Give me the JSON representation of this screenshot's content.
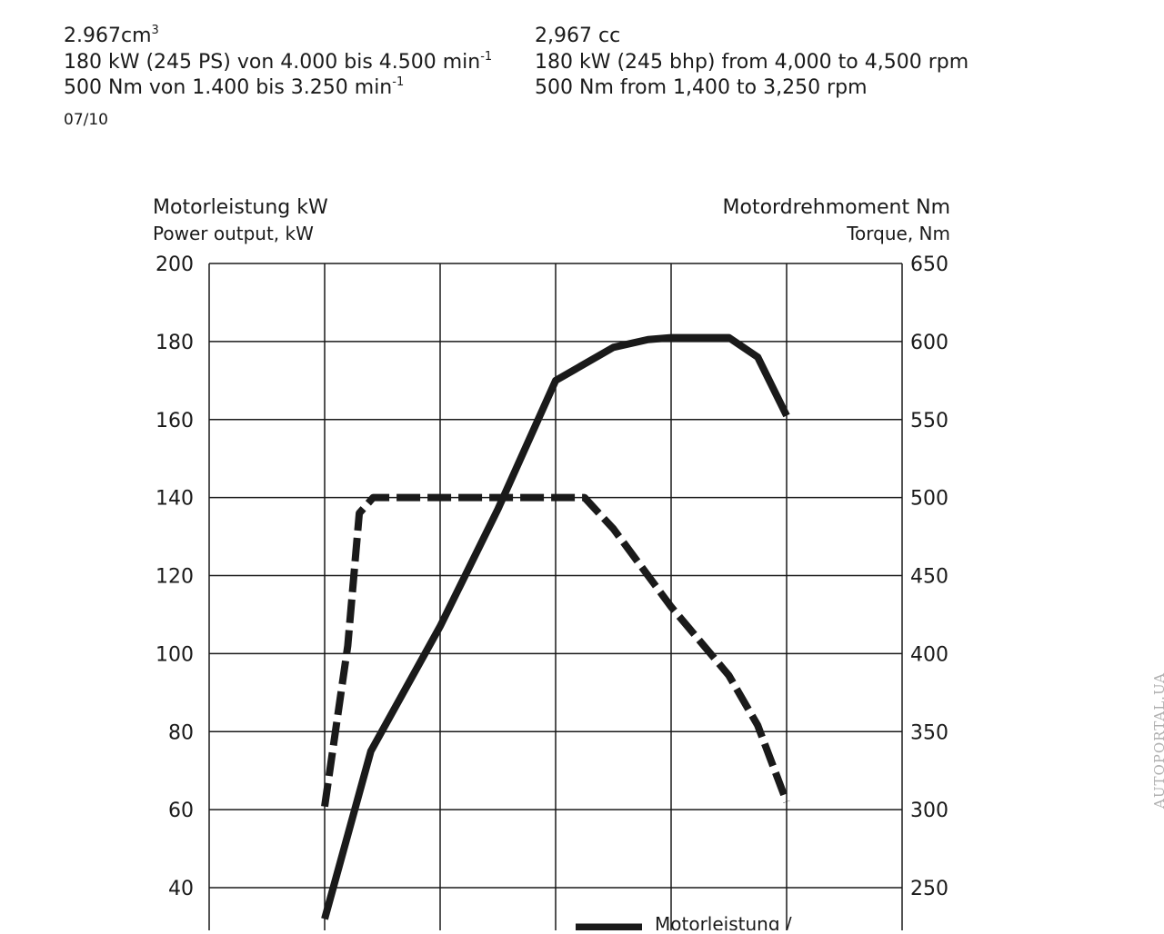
{
  "spec_de": {
    "displacement": "2.967cm",
    "displacement_sup": "3",
    "power": "180 kW (245 PS) von 4.000 bis 4.500 min",
    "power_sup": "-1",
    "torque": "500 Nm von 1.400 bis 3.250 min",
    "torque_sup": "-1"
  },
  "spec_en": {
    "displacement": "2,967 cc",
    "power": "180 kW (245 bhp) from 4,000 to 4,500 rpm",
    "torque": "500 Nm from 1,400 to 3,250 rpm"
  },
  "date": "07/10",
  "watermark": "AUTOPORTAL.UA",
  "chart_data": {
    "type": "line",
    "y_left": {
      "title_de": "Motorleistung kW",
      "title_en": "Power output, kW",
      "min": 30,
      "max": 200,
      "ticks": [
        40,
        60,
        80,
        100,
        120,
        140,
        160,
        180,
        200
      ]
    },
    "y_right": {
      "title_de": "Motordrehmoment Nm",
      "title_en": "Torque, Nm",
      "min": 225,
      "max": 650,
      "ticks": [
        250,
        300,
        350,
        400,
        450,
        500,
        550,
        600,
        650
      ]
    },
    "x": {
      "min": 0,
      "max": 6,
      "gridlines": [
        1,
        2,
        3,
        4,
        5
      ]
    },
    "grid": true,
    "legend": {
      "position": "bottom-right",
      "label": "Motorleistung /"
    },
    "series": [
      {
        "name": "Motorleistung",
        "axis": "left",
        "style": "solid",
        "points": [
          [
            1.0,
            32
          ],
          [
            1.4,
            75
          ],
          [
            2.0,
            107
          ],
          [
            2.5,
            137
          ],
          [
            3.0,
            170
          ],
          [
            3.5,
            178.5
          ],
          [
            3.8,
            180.5
          ],
          [
            4.0,
            181
          ],
          [
            4.5,
            181
          ],
          [
            4.75,
            176
          ],
          [
            5.0,
            161
          ]
        ]
      },
      {
        "name": "Motordrehmoment",
        "axis": "right",
        "style": "dashed",
        "points": [
          [
            1.0,
            302
          ],
          [
            1.2,
            405
          ],
          [
            1.3,
            490
          ],
          [
            1.42,
            500
          ],
          [
            1.6,
            500
          ],
          [
            2.0,
            500
          ],
          [
            2.5,
            500
          ],
          [
            3.0,
            500
          ],
          [
            3.25,
            500
          ],
          [
            3.5,
            480
          ],
          [
            4.0,
            430
          ],
          [
            4.5,
            386
          ],
          [
            4.75,
            354
          ],
          [
            5.0,
            305
          ]
        ]
      }
    ]
  }
}
